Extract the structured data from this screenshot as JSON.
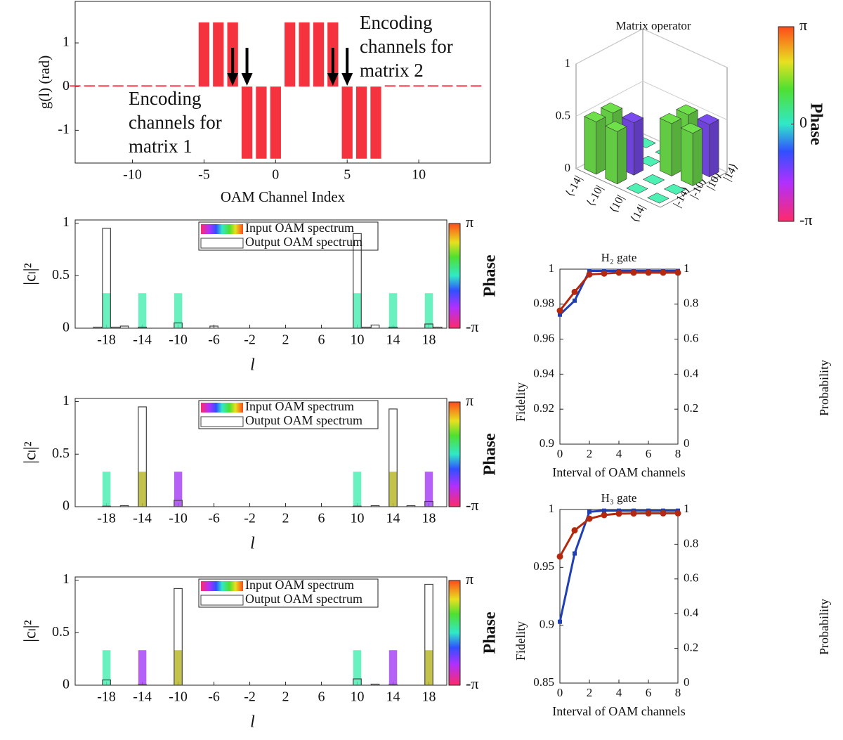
{
  "chart_data": [
    {
      "type": "bar",
      "ylabel": "g(l) (rad)",
      "xlabel": "OAM Channel Index",
      "x": [
        -14,
        -13,
        -12,
        -11,
        -10,
        -9,
        -8,
        -7,
        -6,
        -5,
        -4,
        -3,
        -2,
        -1,
        0,
        1,
        2,
        3,
        4,
        5,
        6,
        7,
        8,
        9,
        10,
        11,
        12,
        13,
        14
      ],
      "values": [
        0.03,
        0.03,
        0.03,
        0.03,
        0.03,
        0.03,
        0.03,
        0.03,
        0.03,
        1.47,
        1.47,
        1.47,
        -1.65,
        -1.65,
        -1.65,
        1.47,
        1.47,
        1.47,
        1.47,
        -1.65,
        -1.65,
        -1.65,
        0.03,
        0.03,
        0.03,
        0.03,
        0.03,
        0.03,
        0.03
      ],
      "color": "#f5333f",
      "xlim": [
        -14,
        15
      ],
      "ylim": [
        -1.75,
        1.95
      ],
      "xticks": [
        -10,
        -5,
        0,
        5,
        10
      ],
      "yticks": [
        -1,
        0,
        1
      ],
      "annotations": [
        {
          "lines": [
            "Encoding",
            "channels for",
            "matrix 1"
          ],
          "points": [
            -3,
            -2
          ]
        },
        {
          "lines": [
            "Encoding",
            "channels for",
            "matrix 2"
          ],
          "points": [
            4,
            5
          ]
        }
      ]
    },
    {
      "type": "spectrum",
      "ylabel": "|cₗ|²",
      "xlabel": "l",
      "x": [
        -19,
        -18,
        -17,
        -16,
        -14,
        -10,
        -6,
        10,
        11,
        12,
        14,
        18,
        19
      ],
      "series": [
        {
          "name": "Input OAM spectrum",
          "values": [
            null,
            0.333,
            null,
            null,
            0.333,
            0.333,
            null,
            0.333,
            null,
            null,
            0.333,
            0.333,
            null
          ],
          "colors": [
            null,
            "#4ff0b4",
            null,
            null,
            "#4ff0b4",
            "#4ff0b4",
            null,
            "#4ff0b4",
            null,
            null,
            "#4ff0b4",
            "#4ff0b4",
            null
          ]
        },
        {
          "name": "Output OAM spectrum",
          "values": [
            0.01,
            0.95,
            0.01,
            0.02,
            0.01,
            0.05,
            0.02,
            0.9,
            0.01,
            0.03,
            0.01,
            0.04,
            0.01
          ],
          "color": "none",
          "edgecolor": "#444"
        }
      ],
      "xlim": [
        -21.5,
        20
      ],
      "ylim": [
        0,
        1.03
      ],
      "xticks": [
        -18,
        -14,
        -10,
        -6,
        -2,
        2,
        6,
        10,
        14,
        18
      ],
      "yticks": [
        0,
        0.5,
        1
      ],
      "colorbar": {
        "label": "Phase",
        "lim": [
          -3.1416,
          3.1416
        ],
        "ticks": [
          {
            "value": 3.1416,
            "label": "π"
          },
          {
            "value": -3.1416,
            "label": "-π"
          }
        ]
      }
    },
    {
      "type": "spectrum",
      "ylabel": "|cₗ|²",
      "xlabel": "l",
      "x": [
        -18,
        -16,
        -14,
        -10,
        10,
        12,
        14,
        16,
        18
      ],
      "series": [
        {
          "name": "Input OAM spectrum",
          "values": [
            0.333,
            null,
            0.333,
            0.333,
            0.333,
            null,
            0.333,
            null,
            0.333
          ],
          "colors": [
            "#4ff0b4",
            null,
            "#b8b82c",
            "#a844f4",
            "#4ff0b4",
            null,
            "#b8b82c",
            null,
            "#a844f4"
          ]
        },
        {
          "name": "Output OAM spectrum",
          "values": [
            0.005,
            0.01,
            0.95,
            0.06,
            0.005,
            0.01,
            0.93,
            0.01,
            0.05
          ],
          "color": "none",
          "edgecolor": "#444"
        }
      ],
      "xlim": [
        -21.5,
        20
      ],
      "ylim": [
        0,
        1.03
      ],
      "xticks": [
        -18,
        -14,
        -10,
        -6,
        -2,
        2,
        6,
        10,
        14,
        18
      ],
      "yticks": [
        0,
        0.5,
        1
      ],
      "colorbar": {
        "label": "Phase",
        "lim": [
          -3.1416,
          3.1416
        ],
        "ticks": [
          {
            "value": 3.1416,
            "label": "π"
          },
          {
            "value": -3.1416,
            "label": "-π"
          }
        ]
      }
    },
    {
      "type": "spectrum",
      "ylabel": "|cₗ|²",
      "xlabel": "l",
      "x": [
        -18,
        -14,
        -10,
        10,
        12,
        14,
        18
      ],
      "series": [
        {
          "name": "Input OAM spectrum",
          "values": [
            0.333,
            0.333,
            0.333,
            0.333,
            null,
            0.333,
            0.333
          ],
          "colors": [
            "#4ff0b4",
            "#a844f4",
            "#b8b82c",
            "#4ff0b4",
            null,
            "#a844f4",
            "#b8b82c"
          ]
        },
        {
          "name": "Output OAM spectrum",
          "values": [
            0.05,
            0.005,
            0.92,
            0.06,
            0.01,
            0.005,
            0.96
          ],
          "color": "none",
          "edgecolor": "#444"
        }
      ],
      "xlim": [
        -21.5,
        20
      ],
      "ylim": [
        0,
        1.03
      ],
      "xticks": [
        -18,
        -14,
        -10,
        -6,
        -2,
        2,
        6,
        10,
        14,
        18
      ],
      "yticks": [
        0,
        0.5,
        1
      ],
      "colorbar": {
        "label": "Phase",
        "lim": [
          -3.1416,
          3.1416
        ],
        "ticks": [
          {
            "value": 3.1416,
            "label": "π"
          },
          {
            "value": -3.1416,
            "label": "-π"
          }
        ]
      }
    },
    {
      "type": "bar3d",
      "title": "Matrix operator",
      "row_labels": [
        "⟨-14|",
        "⟨-10|",
        "⟨10|",
        "⟨14|"
      ],
      "col_labels": [
        "|-14⟩",
        "|-10⟩",
        "|10⟩",
        "|14⟩"
      ],
      "values": [
        [
          0.5,
          0.5,
          0,
          0
        ],
        [
          0.5,
          0.5,
          0,
          0
        ],
        [
          0,
          0,
          0.5,
          0.5
        ],
        [
          0,
          0,
          0.5,
          0.5
        ]
      ],
      "colors": [
        [
          "#6ee04a",
          "#6ee04a",
          "#4ff0b4",
          "#4ff0b4"
        ],
        [
          "#6ee04a",
          "#7a4cf0",
          "#4ff0b4",
          "#4ff0b4"
        ],
        [
          "#4ff0b4",
          "#4ff0b4",
          "#6ee04a",
          "#6ee04a"
        ],
        [
          "#4ff0b4",
          "#4ff0b4",
          "#6ee04a",
          "#7a4cf0"
        ]
      ],
      "zlim": [
        0,
        1
      ],
      "zticks": [
        0,
        0.5,
        1
      ],
      "colorbar": {
        "label": "Phase",
        "lim": [
          -3.1416,
          3.1416
        ],
        "ticks": [
          {
            "value": 3.1416,
            "label": "π"
          },
          {
            "value": 0,
            "label": "0"
          },
          {
            "value": -3.1416,
            "label": "-π"
          }
        ]
      }
    },
    {
      "type": "line",
      "title": "H₂ gate",
      "xlabel": "Interval of OAM channels",
      "ylabel": "Fidelity",
      "y2label": "Probability",
      "x": [
        0,
        1,
        2,
        3,
        4,
        5,
        6,
        7,
        8
      ],
      "series": [
        {
          "name": "Fidelity",
          "color": "#1f3fb4",
          "marker": "square",
          "values": [
            0.974,
            0.982,
            0.999,
            0.999,
            0.999,
            0.999,
            0.999,
            0.999,
            0.999
          ]
        },
        {
          "name": "Probability",
          "color": "#b4280e",
          "marker": "circle",
          "axis": "y2",
          "values": [
            0.763,
            0.87,
            0.97,
            0.975,
            0.98,
            0.98,
            0.98,
            0.98,
            0.98
          ]
        }
      ],
      "xlim": [
        0,
        8
      ],
      "xticks": [
        0,
        2,
        4,
        6,
        8
      ],
      "ylim": [
        0.9,
        1
      ],
      "yticks": [
        0.9,
        0.92,
        0.94,
        0.96,
        0.98,
        1
      ],
      "y2lim": [
        0,
        1
      ],
      "y2ticks": [
        0,
        0.2,
        0.4,
        0.6,
        0.8,
        1
      ]
    },
    {
      "type": "line",
      "title": "H₃ gate",
      "xlabel": "Interval of OAM channels",
      "ylabel": "Fidelity",
      "y2label": "Probability",
      "x": [
        0,
        1,
        2,
        3,
        4,
        5,
        6,
        7,
        8
      ],
      "series": [
        {
          "name": "Fidelity",
          "color": "#1f3fb4",
          "marker": "square",
          "values": [
            0.903,
            0.962,
            0.998,
            0.999,
            0.999,
            0.999,
            0.999,
            0.999,
            0.999
          ]
        },
        {
          "name": "Probability",
          "color": "#b4280e",
          "marker": "circle",
          "axis": "y2",
          "values": [
            0.729,
            0.88,
            0.947,
            0.968,
            0.976,
            0.977,
            0.978,
            0.978,
            0.978
          ]
        }
      ],
      "xlim": [
        0,
        8
      ],
      "xticks": [
        0,
        2,
        4,
        6,
        8
      ],
      "ylim": [
        0.85,
        1
      ],
      "yticks": [
        0.85,
        0.9,
        0.95,
        1
      ],
      "y2lim": [
        0,
        1
      ],
      "y2ticks": [
        0,
        0.2,
        0.4,
        0.6,
        0.8,
        1
      ]
    }
  ]
}
